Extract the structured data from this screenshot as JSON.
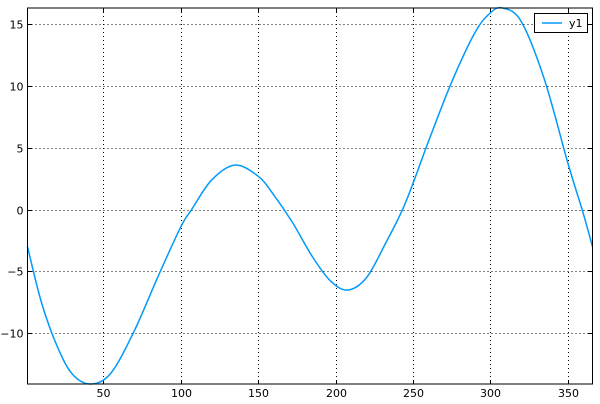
{
  "chart_data": {
    "type": "line",
    "title": "",
    "xlabel": "",
    "ylabel": "",
    "xlim": [
      1,
      366
    ],
    "ylim": [
      -14.1,
      16.3
    ],
    "grid": true,
    "legend_position": "top-right",
    "xticks": [
      50,
      100,
      150,
      200,
      250,
      300,
      350
    ],
    "yticks": [
      -10,
      -5,
      0,
      5,
      10,
      15
    ],
    "xtick_labels": [
      "50",
      "100",
      "150",
      "200",
      "250",
      "300",
      "350"
    ],
    "ytick_labels": [
      "−10",
      "−5",
      "0",
      "5",
      "10",
      "15"
    ],
    "series": [
      {
        "name": "y1",
        "color": "#009AFA",
        "x": [
          1,
          10,
          20,
          30,
          42,
          55,
          70,
          85,
          100,
          107,
          120,
          135,
          150,
          160,
          172,
          185,
          197,
          208,
          220,
          232,
          245,
          260,
          275,
          290,
          300,
          308,
          320,
          335,
          350,
          360,
          366
        ],
        "y": [
          -3,
          -7.5,
          -11,
          -13.3,
          -14.1,
          -13.2,
          -9.8,
          -5.5,
          -1.4,
          0,
          2.4,
          3.6,
          2.7,
          1.2,
          -1,
          -3.8,
          -5.8,
          -6.5,
          -5.5,
          -2.8,
          0.5,
          5.5,
          10.3,
          14.3,
          15.9,
          16.3,
          15.2,
          10.5,
          3.8,
          -0.3,
          -3
        ]
      }
    ]
  }
}
